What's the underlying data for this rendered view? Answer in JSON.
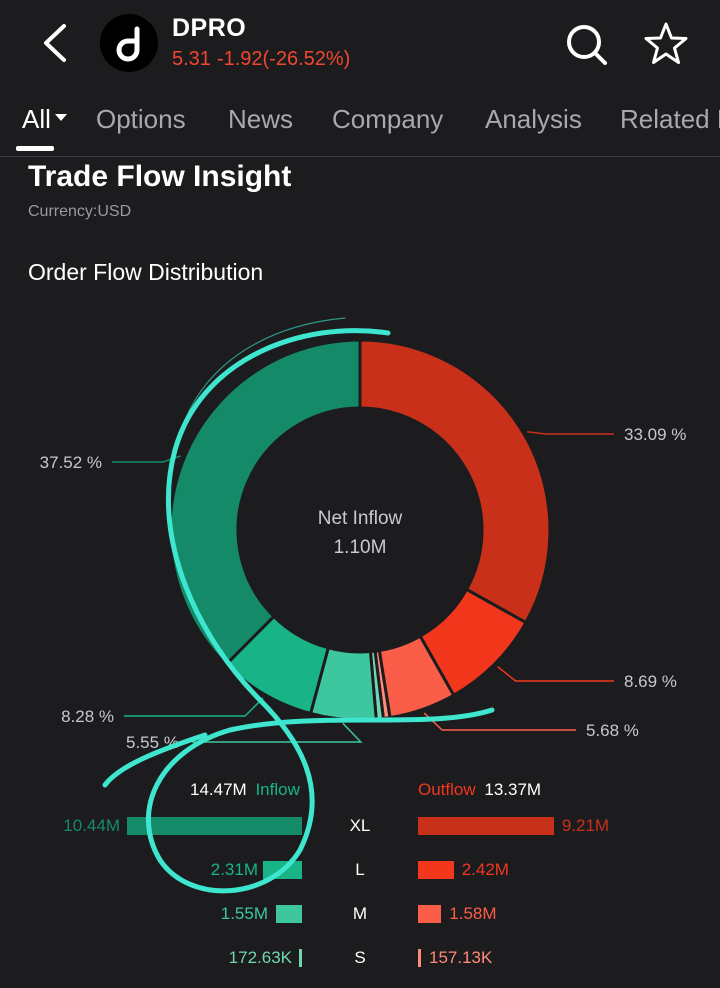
{
  "header": {
    "ticker": "DPRO",
    "price": "5.31",
    "change": "-1.92(-26.52%)"
  },
  "tabs": [
    {
      "label": "All"
    },
    {
      "label": "Options"
    },
    {
      "label": "News"
    },
    {
      "label": "Company"
    },
    {
      "label": "Analysis"
    },
    {
      "label": "Related E"
    }
  ],
  "section": {
    "title": "Trade Flow Insight",
    "currency": "Currency:USD",
    "subtitle": "Order Flow Distribution"
  },
  "colors": {
    "inflow_xl": "#158a68",
    "inflow_l": "#18b487",
    "inflow_m": "#3ec79f",
    "inflow_s": "#6fd6b4",
    "outflow_xl": "#c9301a",
    "outflow_l": "#f2371d",
    "outflow_m": "#fb5e48",
    "outflow_s": "#ff8a78",
    "annotation": "#3ee6cf"
  },
  "chart_data": {
    "type": "pie",
    "center_title": "Net Inflow",
    "center_value": "1.10M",
    "slices": [
      {
        "name": "Outflow XL",
        "value": 33.09,
        "label": "33.09 %",
        "color": "#c9301a"
      },
      {
        "name": "Outflow L",
        "value": 8.69,
        "label": "8.69 %",
        "color": "#f2371d"
      },
      {
        "name": "Outflow M",
        "value": 5.68,
        "label": "5.68 %",
        "color": "#fb5e48"
      },
      {
        "name": "Outflow S",
        "value": 0.56,
        "label": "",
        "color": "#ff8a78"
      },
      {
        "name": "Inflow S",
        "value": 0.6,
        "label": "",
        "color": "#6fd6b4"
      },
      {
        "name": "Inflow M",
        "value": 5.55,
        "label": "5.55 %",
        "color": "#3ec79f"
      },
      {
        "name": "Inflow L",
        "value": 8.28,
        "label": "8.28 %",
        "color": "#18b487"
      },
      {
        "name": "Inflow XL",
        "value": 37.52,
        "label": "37.52 %",
        "color": "#158a68"
      }
    ]
  },
  "summary": {
    "inflow_total": "14.47M",
    "inflow_label": "Inflow",
    "outflow_label": "Outflow",
    "outflow_total": "13.37M"
  },
  "rows": [
    {
      "size": "XL",
      "inflow": "10.44M",
      "outflow": "9.21M",
      "inflow_value": 10.44,
      "outflow_value": 9.21
    },
    {
      "size": "L",
      "inflow": "2.31M",
      "outflow": "2.42M",
      "inflow_value": 2.31,
      "outflow_value": 2.42
    },
    {
      "size": "M",
      "inflow": "1.55M",
      "outflow": "1.58M",
      "inflow_value": 1.55,
      "outflow_value": 1.58
    },
    {
      "size": "S",
      "inflow": "172.63K",
      "outflow": "157.13K",
      "inflow_value": 0.17263,
      "outflow_value": 0.15713
    }
  ]
}
